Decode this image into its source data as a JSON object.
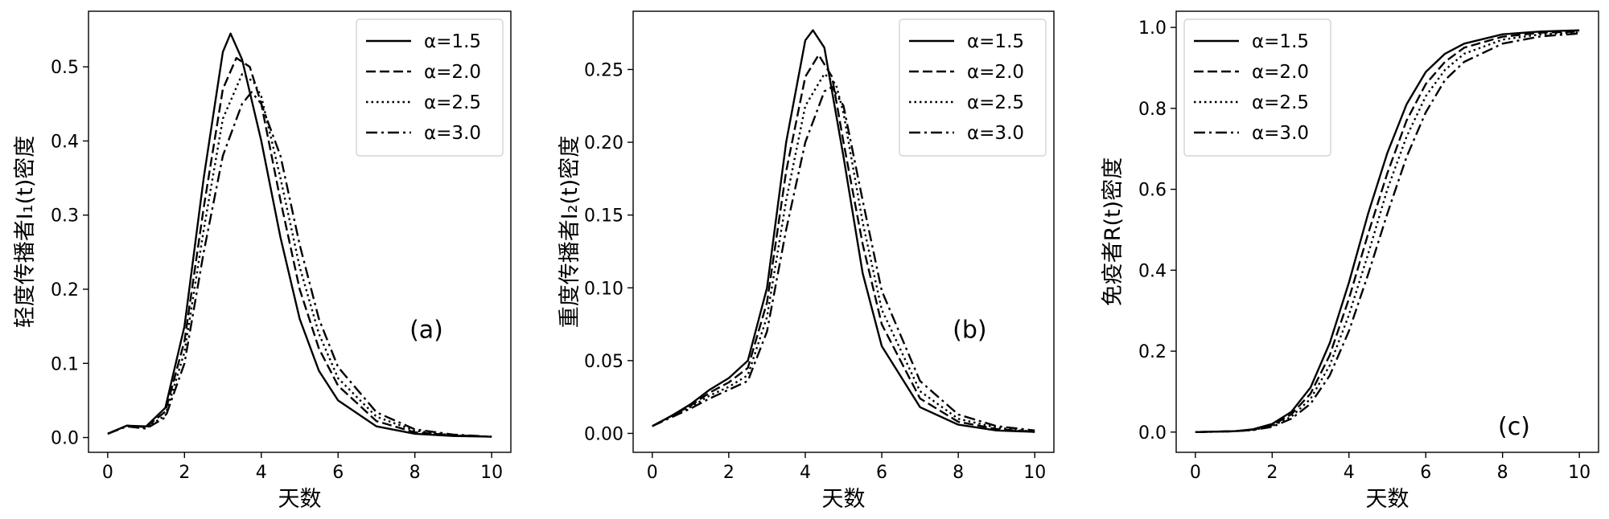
{
  "chart_data": [
    {
      "type": "line",
      "xlabel": "天数",
      "ylabel": "轻度传播者I₁(t)密度",
      "xlim": [
        -0.5,
        10.5
      ],
      "ylim": [
        -0.02,
        0.575
      ],
      "xticks": [
        0,
        2,
        4,
        6,
        8,
        10
      ],
      "yticks": [
        0.0,
        0.1,
        0.2,
        0.3,
        0.4,
        0.5
      ],
      "annotation": "(a)",
      "legend": "top-right",
      "grid": false,
      "series": [
        {
          "name": "α=1.5",
          "style": "solid",
          "x": [
            0,
            0.5,
            1,
            1.5,
            2,
            2.5,
            3,
            3.2,
            3.5,
            4,
            4.5,
            5,
            5.5,
            6,
            7,
            8,
            9,
            10
          ],
          "y": [
            0.005,
            0.016,
            0.015,
            0.04,
            0.15,
            0.35,
            0.52,
            0.545,
            0.51,
            0.4,
            0.27,
            0.16,
            0.09,
            0.05,
            0.015,
            0.005,
            0.002,
            0.001
          ]
        },
        {
          "name": "α=2.0",
          "style": "dashed",
          "x": [
            0,
            0.5,
            1,
            1.5,
            2,
            2.5,
            3,
            3.35,
            3.7,
            4,
            4.5,
            5,
            5.5,
            6,
            7,
            8,
            9,
            10
          ],
          "y": [
            0.005,
            0.016,
            0.014,
            0.035,
            0.13,
            0.31,
            0.47,
            0.512,
            0.5,
            0.45,
            0.32,
            0.2,
            0.12,
            0.07,
            0.022,
            0.007,
            0.003,
            0.001
          ]
        },
        {
          "name": "α=2.5",
          "style": "dotted",
          "x": [
            0,
            0.5,
            1,
            1.5,
            2,
            2.5,
            3,
            3.5,
            3.8,
            4,
            4.5,
            5,
            5.5,
            6,
            7,
            8,
            9,
            10
          ],
          "y": [
            0.005,
            0.016,
            0.013,
            0.03,
            0.115,
            0.28,
            0.43,
            0.49,
            0.48,
            0.46,
            0.35,
            0.23,
            0.14,
            0.08,
            0.028,
            0.009,
            0.003,
            0.001
          ]
        },
        {
          "name": "α=3.0",
          "style": "dashdot",
          "x": [
            0,
            0.5,
            1,
            1.5,
            2,
            2.5,
            3,
            3.5,
            3.75,
            4,
            4.5,
            5,
            5.5,
            6,
            7,
            8,
            9,
            10
          ],
          "y": [
            0.005,
            0.015,
            0.012,
            0.027,
            0.1,
            0.25,
            0.38,
            0.45,
            0.466,
            0.45,
            0.38,
            0.26,
            0.16,
            0.095,
            0.034,
            0.011,
            0.004,
            0.001
          ]
        }
      ]
    },
    {
      "type": "line",
      "xlabel": "天数",
      "ylabel": "重度传播者I₂(t)密度",
      "xlim": [
        -0.5,
        10.5
      ],
      "ylim": [
        -0.013,
        0.29
      ],
      "xticks": [
        0,
        2,
        4,
        6,
        8,
        10
      ],
      "yticks": [
        0.0,
        0.05,
        0.1,
        0.15,
        0.2,
        0.25
      ],
      "annotation": "(b)",
      "legend": "top-right",
      "grid": false,
      "series": [
        {
          "name": "α=1.5",
          "style": "solid",
          "x": [
            0,
            0.5,
            1,
            1.5,
            2,
            2.5,
            3,
            3.5,
            4,
            4.2,
            4.5,
            5,
            5.5,
            6,
            7,
            8,
            9,
            10
          ],
          "y": [
            0.005,
            0.012,
            0.02,
            0.03,
            0.038,
            0.05,
            0.1,
            0.2,
            0.27,
            0.277,
            0.265,
            0.19,
            0.11,
            0.06,
            0.018,
            0.006,
            0.002,
            0.001
          ]
        },
        {
          "name": "α=2.0",
          "style": "dashed",
          "x": [
            0,
            0.5,
            1,
            1.5,
            2,
            2.5,
            3,
            3.5,
            4,
            4.35,
            4.7,
            5,
            5.5,
            6,
            7,
            8,
            9,
            10
          ],
          "y": [
            0.005,
            0.012,
            0.019,
            0.028,
            0.035,
            0.045,
            0.09,
            0.18,
            0.245,
            0.26,
            0.245,
            0.2,
            0.13,
            0.075,
            0.024,
            0.008,
            0.003,
            0.001
          ]
        },
        {
          "name": "α=2.5",
          "style": "dotted",
          "x": [
            0,
            0.5,
            1,
            1.5,
            2,
            2.5,
            3,
            3.5,
            4,
            4.5,
            4.8,
            5,
            5.5,
            6,
            7,
            8,
            9,
            10
          ],
          "y": [
            0.005,
            0.012,
            0.018,
            0.026,
            0.032,
            0.04,
            0.08,
            0.16,
            0.225,
            0.247,
            0.24,
            0.22,
            0.145,
            0.085,
            0.029,
            0.01,
            0.004,
            0.001
          ]
        },
        {
          "name": "α=3.0",
          "style": "dashdot",
          "x": [
            0,
            0.5,
            1,
            1.5,
            2,
            2.5,
            3,
            3.5,
            4,
            4.5,
            4.7,
            5,
            5.5,
            6,
            7,
            8,
            9,
            10
          ],
          "y": [
            0.005,
            0.011,
            0.017,
            0.024,
            0.03,
            0.036,
            0.07,
            0.14,
            0.2,
            0.235,
            0.238,
            0.225,
            0.16,
            0.098,
            0.036,
            0.013,
            0.005,
            0.002
          ]
        }
      ]
    },
    {
      "type": "line",
      "xlabel": "天数",
      "ylabel": "免疫者R(t)密度",
      "xlim": [
        -0.5,
        10.5
      ],
      "ylim": [
        -0.05,
        1.04
      ],
      "xticks": [
        0,
        2,
        4,
        6,
        8,
        10
      ],
      "yticks": [
        0.0,
        0.2,
        0.4,
        0.6,
        0.8,
        1.0
      ],
      "annotation": "(c)",
      "legend": "top-left",
      "grid": false,
      "series": [
        {
          "name": "α=1.5",
          "style": "solid",
          "x": [
            0,
            1,
            1.5,
            2,
            2.5,
            3,
            3.5,
            4,
            4.5,
            5,
            5.5,
            6,
            6.5,
            7,
            8,
            9,
            10
          ],
          "y": [
            0,
            0.002,
            0.007,
            0.02,
            0.05,
            0.11,
            0.22,
            0.37,
            0.54,
            0.69,
            0.81,
            0.89,
            0.935,
            0.96,
            0.983,
            0.99,
            0.993
          ]
        },
        {
          "name": "α=2.0",
          "style": "dashed",
          "x": [
            0,
            1,
            1.5,
            2,
            2.5,
            3,
            3.5,
            4,
            4.5,
            5,
            5.5,
            6,
            6.5,
            7,
            8,
            9,
            10
          ],
          "y": [
            0,
            0.002,
            0.006,
            0.017,
            0.044,
            0.095,
            0.19,
            0.33,
            0.49,
            0.64,
            0.77,
            0.86,
            0.915,
            0.95,
            0.977,
            0.987,
            0.99
          ]
        },
        {
          "name": "α=2.5",
          "style": "dotted",
          "x": [
            0,
            1,
            1.5,
            2,
            2.5,
            3,
            3.5,
            4,
            4.5,
            5,
            5.5,
            6,
            6.5,
            7,
            8,
            9,
            10
          ],
          "y": [
            0,
            0.002,
            0.005,
            0.015,
            0.038,
            0.082,
            0.165,
            0.29,
            0.44,
            0.6,
            0.73,
            0.83,
            0.895,
            0.935,
            0.97,
            0.983,
            0.988
          ]
        },
        {
          "name": "α=3.0",
          "style": "dashdot",
          "x": [
            0,
            1,
            1.5,
            2,
            2.5,
            3,
            3.5,
            4,
            4.5,
            5,
            5.5,
            6,
            6.5,
            7,
            8,
            9,
            10
          ],
          "y": [
            0,
            0.002,
            0.005,
            0.013,
            0.033,
            0.07,
            0.14,
            0.25,
            0.39,
            0.54,
            0.68,
            0.79,
            0.87,
            0.915,
            0.96,
            0.978,
            0.985
          ]
        }
      ]
    }
  ]
}
